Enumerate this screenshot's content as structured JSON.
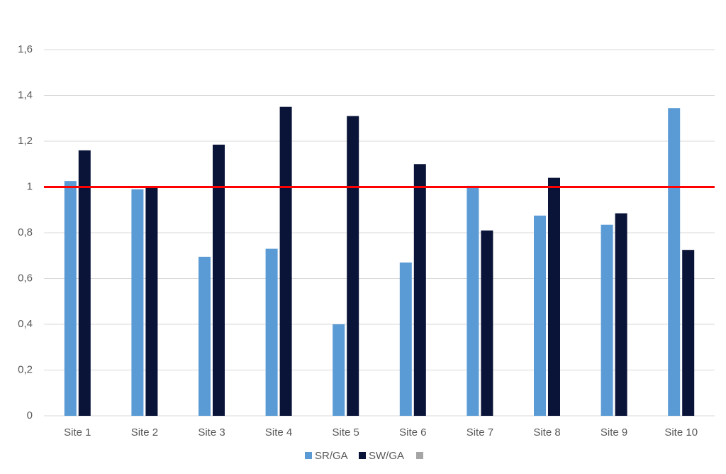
{
  "chart_data": {
    "type": "bar",
    "categories": [
      "Site 1",
      "Site 2",
      "Site 3",
      "Site 4",
      "Site 5",
      "Site 6",
      "Site 7",
      "Site 8",
      "Site 9",
      "Site 10"
    ],
    "series": [
      {
        "name": "SR/GA",
        "color": "#5b9bd5",
        "values": [
          1.026,
          0.99,
          0.695,
          0.73,
          0.4,
          0.67,
          1.005,
          0.875,
          0.835,
          1.345
        ]
      },
      {
        "name": "SW/GA",
        "color": "#0a1438",
        "values": [
          1.16,
          1.0,
          1.185,
          1.35,
          1.31,
          1.1,
          0.81,
          1.04,
          0.885,
          0.725
        ]
      }
    ],
    "ylim": [
      0,
      1.6
    ],
    "yticks": [
      0,
      {
        "value": 0.2,
        "label": "0,2"
      },
      {
        "value": 0.4,
        "label": "0,4"
      },
      {
        "value": 0.6,
        "label": "0,6"
      },
      {
        "value": 0.8,
        "label": "0,8"
      },
      1,
      {
        "value": 1.2,
        "label": "1,2"
      },
      {
        "value": 1.4,
        "label": "1,4"
      },
      {
        "value": 1.6,
        "label": "1,6"
      }
    ],
    "grid": true,
    "reference_line": 1,
    "reference_color": "#ff0000",
    "legend": "bottom"
  }
}
